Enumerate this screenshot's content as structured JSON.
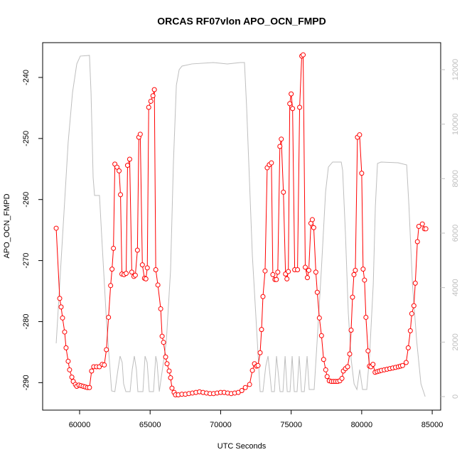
{
  "chart_data": {
    "type": "line",
    "title": "ORCAS RF07vlon APO_OCN_FMPD",
    "xlabel": "UTC Seconds",
    "ylabel": "APO_OCN_FMPD",
    "xlim": [
      57380,
      85600
    ],
    "xticks": [
      60000,
      65000,
      70000,
      75000,
      80000,
      85000
    ],
    "ylim": [
      -294.5,
      -234.3
    ],
    "yticks": [
      -290,
      -280,
      -270,
      -260,
      -250,
      -240
    ],
    "y2lim": [
      -496,
      12991
    ],
    "y2ticks": [
      0,
      2000,
      4000,
      6000,
      8000,
      10000,
      12000
    ],
    "series": [
      {
        "color": "#ff0000",
        "marker": "circle",
        "x": [
          58340,
          58590,
          58690,
          58790,
          58940,
          59040,
          59190,
          59290,
          59450,
          59550,
          59700,
          59800,
          59950,
          60100,
          60250,
          60400,
          60550,
          60700,
          60850,
          61000,
          61200,
          61400,
          61600,
          61750,
          61900,
          62050,
          62200,
          62300,
          62400,
          62500,
          62650,
          62800,
          62900,
          63000,
          63150,
          63300,
          63400,
          63550,
          63700,
          63850,
          63950,
          64100,
          64200,
          64300,
          64450,
          64600,
          64700,
          64800,
          64900,
          65050,
          65200,
          65300,
          65400,
          65550,
          65750,
          65850,
          65950,
          66100,
          66200,
          66350,
          66450,
          66550,
          66700,
          66800,
          67000,
          67250,
          67500,
          67750,
          68000,
          68250,
          68500,
          68750,
          69000,
          69250,
          69500,
          69750,
          70000,
          70250,
          70500,
          70750,
          71000,
          71250,
          71500,
          71750,
          72050,
          72250,
          72400,
          72550,
          72650,
          72800,
          72900,
          73000,
          73150,
          73300,
          73450,
          73600,
          73700,
          73850,
          73950,
          74050,
          74200,
          74300,
          74450,
          74600,
          74700,
          74800,
          74900,
          75000,
          75100,
          75250,
          75450,
          75600,
          75750,
          75850,
          76000,
          76150,
          76250,
          76400,
          76500,
          76600,
          76750,
          76850,
          77000,
          77150,
          77300,
          77450,
          77550,
          77700,
          77850,
          78000,
          78150,
          78300,
          78450,
          78600,
          78700,
          78850,
          79000,
          79150,
          79250,
          79350,
          79450,
          79550,
          79700,
          79850,
          80000,
          80100,
          80200,
          80300,
          80450,
          80550,
          80650,
          80800,
          80950,
          81100,
          81250,
          81400,
          81600,
          81800,
          82000,
          82200,
          82400,
          82600,
          82750,
          82900,
          83150,
          83300,
          83450,
          83550,
          83700,
          83800,
          83950,
          84050,
          84300,
          84450,
          84550
        ],
        "values": [
          -264.7,
          -276.2,
          -277.6,
          -279.4,
          -281.7,
          -284.3,
          -286.5,
          -287.9,
          -289.1,
          -289.8,
          -290.3,
          -290.6,
          -290.4,
          -290.5,
          -290.6,
          -290.7,
          -290.8,
          -290.8,
          -288.1,
          -287.4,
          -287.4,
          -287.4,
          -287.0,
          -287.1,
          -284.6,
          -279.3,
          -274.1,
          -271.4,
          -268.0,
          -254.2,
          -254.7,
          -255.3,
          -259.2,
          -272.2,
          -272.3,
          -272.1,
          -254.4,
          -253.4,
          -271.9,
          -272.6,
          -272.4,
          -268.3,
          -249.8,
          -249.3,
          -270.7,
          -272.9,
          -273.0,
          -271.2,
          -244.9,
          -243.9,
          -243.0,
          -242.0,
          -271.5,
          -274.0,
          -277.9,
          -282.4,
          -283.4,
          -285.8,
          -286.9,
          -288.1,
          -289.2,
          -290.9,
          -291.6,
          -292.0,
          -292.0,
          -291.9,
          -291.9,
          -291.8,
          -291.7,
          -291.6,
          -291.5,
          -291.6,
          -291.7,
          -291.8,
          -291.8,
          -291.7,
          -291.6,
          -291.6,
          -291.7,
          -291.8,
          -291.7,
          -291.6,
          -291.3,
          -290.8,
          -290.3,
          -288.0,
          -286.9,
          -287.3,
          -287.2,
          -285.1,
          -281.3,
          -275.9,
          -271.7,
          -254.8,
          -254.3,
          -254.0,
          -272.3,
          -273.1,
          -273.1,
          -271.9,
          -251.3,
          -250.1,
          -258.8,
          -272.2,
          -273.0,
          -271.8,
          -244.3,
          -242.7,
          -245.1,
          -271.5,
          -271.5,
          -244.9,
          -236.5,
          -236.3,
          -271.1,
          -272.8,
          -271.6,
          -263.9,
          -263.3,
          -264.6,
          -271.9,
          -275.2,
          -279.4,
          -282.3,
          -286.2,
          -287.9,
          -289.0,
          -289.7,
          -289.8,
          -289.8,
          -289.8,
          -289.8,
          -289.7,
          -289.3,
          -288.1,
          -287.7,
          -287.4,
          -285.3,
          -281.4,
          -276.0,
          -272.3,
          -271.6,
          -249.8,
          -249.4,
          -255.7,
          -271.4,
          -273.2,
          -279.3,
          -284.8,
          -287.3,
          -287.4,
          -287.0,
          -288.3,
          -288.2,
          -288.1,
          -288.0,
          -287.9,
          -287.8,
          -287.7,
          -287.6,
          -287.5,
          -287.4,
          -287.3,
          -287.2,
          -286.7,
          -284.3,
          -281.5,
          -278.7,
          -277.4,
          -273.7,
          -266.9,
          -264.4,
          -264.0,
          -264.8,
          -264.8
        ]
      },
      {
        "color": "#bebebe",
        "axis": "y2",
        "x": [
          58340,
          58590,
          58890,
          59190,
          59500,
          59800,
          60050,
          60700,
          60810,
          60960,
          61060,
          61150,
          61410,
          61560,
          61900,
          62270,
          62500,
          62720,
          62870,
          63020,
          63120,
          63280,
          63580,
          63730,
          63880,
          64030,
          64130,
          64490,
          64640,
          64790,
          64940,
          65240,
          65400,
          65490,
          65650,
          66150,
          66450,
          66650,
          66860,
          67060,
          67260,
          67960,
          69480,
          70480,
          71390,
          71690,
          71840,
          72250,
          72600,
          72800,
          73000,
          73200,
          73360,
          73510,
          73610,
          73810,
          73960,
          74110,
          74210,
          74420,
          74570,
          74720,
          74920,
          75070,
          75220,
          75420,
          75570,
          75730,
          75930,
          76130,
          76280,
          76630,
          76840,
          77140,
          77440,
          77640,
          77940,
          78550,
          78650,
          78850,
          79050,
          79250,
          79460,
          79660,
          79860,
          80060,
          80360,
          80560,
          80820,
          80970,
          81120,
          81370,
          82580,
          83190,
          83350,
          83600,
          83900,
          84200,
          84500
        ],
        "values": [
          1957,
          4122,
          6731,
          9340,
          11166,
          12210,
          12497,
          12523,
          11166,
          8035,
          7383,
          7383,
          7383,
          5950,
          2818,
          209,
          183,
          991,
          1487,
          1252,
          470,
          183,
          183,
          991,
          1487,
          991,
          183,
          183,
          1487,
          1252,
          183,
          183,
          1487,
          1252,
          183,
          2035,
          4644,
          8557,
          11427,
          12000,
          12131,
          12210,
          12262,
          12210,
          12262,
          12262,
          10644,
          5166,
          2035,
          183,
          183,
          1122,
          1487,
          730,
          183,
          183,
          1487,
          730,
          183,
          183,
          1487,
          183,
          183,
          1487,
          183,
          183,
          1487,
          183,
          183,
          1487,
          261,
          261,
          2035,
          4644,
          7514,
          8427,
          8609,
          8609,
          8296,
          5950,
          3078,
          1383,
          470,
          261,
          991,
          261,
          261,
          1513,
          4122,
          6992,
          8557,
          8609,
          8583,
          8505,
          6992,
          4122,
          2035,
          470,
          0
        ]
      }
    ]
  }
}
